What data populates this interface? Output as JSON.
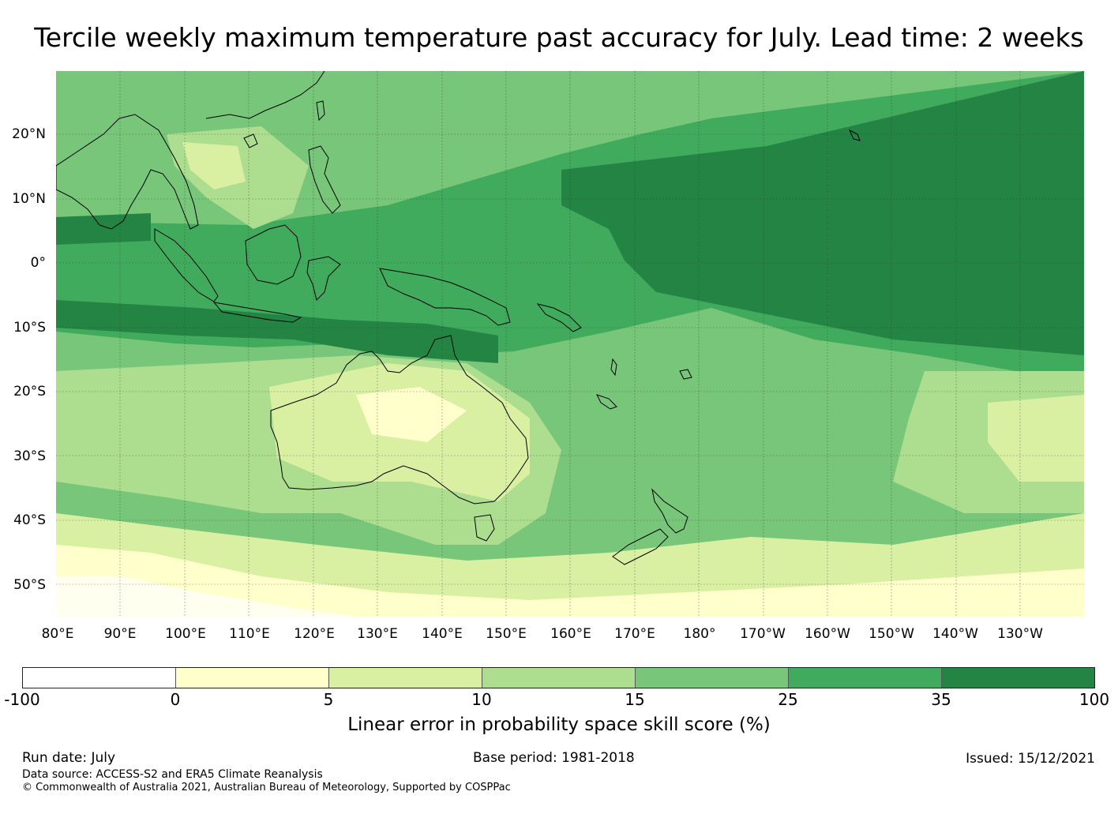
{
  "title": "Tercile weekly maximum temperature past accuracy for July. Lead time: 2 weeks",
  "map": {
    "lat_labels": [
      "20°N",
      "10°N",
      "0°",
      "10°S",
      "20°S",
      "30°S",
      "40°S",
      "50°S"
    ],
    "lon_labels": [
      "80°E",
      "90°E",
      "100°E",
      "110°E",
      "120°E",
      "130°E",
      "140°E",
      "150°E",
      "160°E",
      "170°E",
      "180°",
      "170°W",
      "160°W",
      "150°W",
      "140°W",
      "130°W"
    ],
    "extent": {
      "lon_min": 80,
      "lon_max": 240,
      "lat_min": -55,
      "lat_max": 30
    }
  },
  "legend": {
    "label": "Linear error in probability space skill score (%)",
    "ticks": [
      "-100",
      "0",
      "5",
      "10",
      "15",
      "25",
      "35",
      "100"
    ],
    "colors": [
      "#ffffff",
      "#ffffcc",
      "#d9f0a3",
      "#addd8e",
      "#78c679",
      "#41ab5d",
      "#238443"
    ]
  },
  "footer": {
    "run_date": "Run date: July",
    "base_period": "Base period: 1981-2018",
    "issued": "Issued: 15/12/2021",
    "data_source": "Data source: ACCESS-S2 and ERA5 Climate Reanalysis",
    "copyright": "© Commonwealth of Australia 2021, Australian Bureau of Meteorology, Supported by COSPPac"
  }
}
